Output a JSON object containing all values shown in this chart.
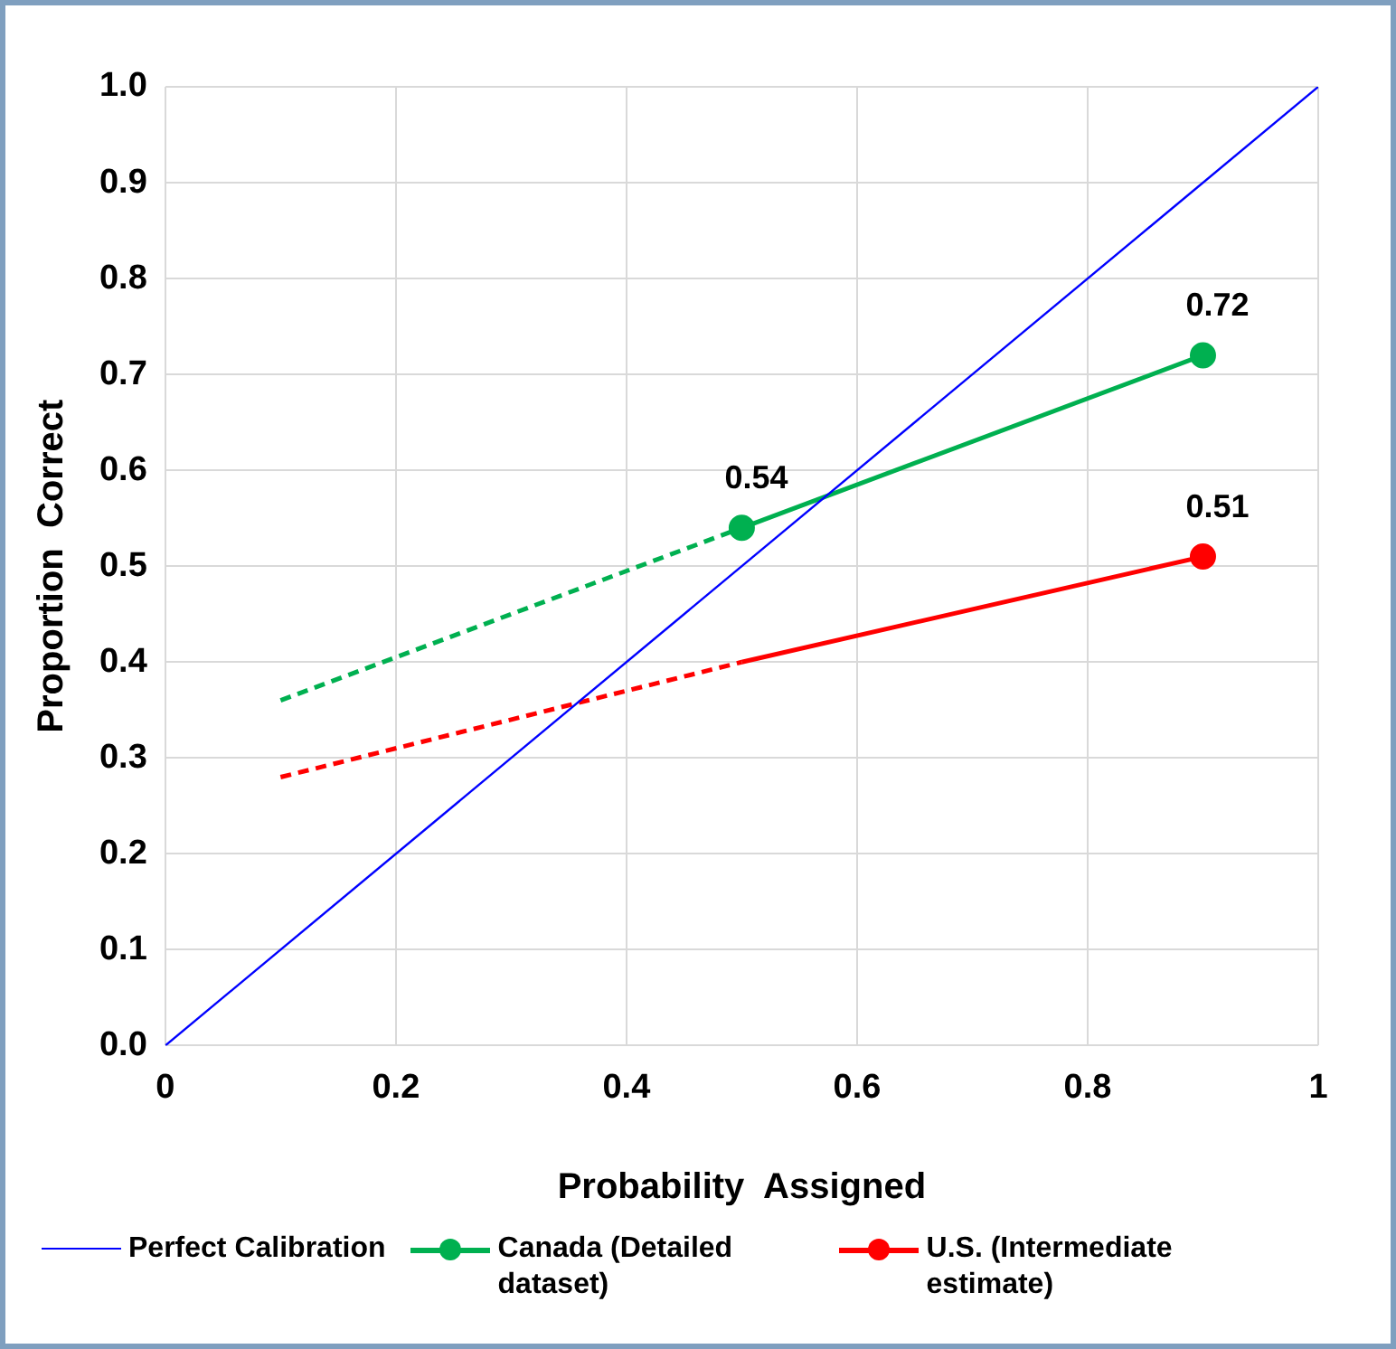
{
  "chart_data": {
    "type": "line",
    "xlabel": "Probability  Assigned",
    "ylabel": "Proportion  Correct",
    "xlim": [
      0,
      1
    ],
    "xticks": [
      0,
      0.2,
      0.4,
      0.6,
      0.8,
      1
    ],
    "ylim": [
      0,
      1
    ],
    "yticks": [
      {
        "value": 0,
        "label": "0.0"
      },
      {
        "value": 0.1,
        "label": "0.1"
      },
      {
        "value": 0.2,
        "label": "0.2"
      },
      {
        "value": 0.3,
        "label": "0.3"
      },
      {
        "value": 0.4,
        "label": "0.4"
      },
      {
        "value": 0.5,
        "label": "0.5"
      },
      {
        "value": 0.6,
        "label": "0.6"
      },
      {
        "value": 0.7,
        "label": "0.7"
      },
      {
        "value": 0.8,
        "label": "0.8"
      },
      {
        "value": 0.9,
        "label": "0.9"
      },
      {
        "value": 1,
        "label": "1.0"
      }
    ],
    "grid": true,
    "legend": "bottom",
    "series": [
      {
        "name": "Perfect Calibration",
        "color": "#0000ff",
        "x": [
          0,
          1
        ],
        "values": [
          0,
          1
        ],
        "marker": "none",
        "line_style": "solid"
      },
      {
        "name": "Canada (Detailed dataset)",
        "color": "#00b050",
        "x": [
          0.5,
          0.9
        ],
        "values": [
          0.54,
          0.72
        ],
        "value_labels": [
          "0.54",
          "0.72"
        ],
        "marker": "circle",
        "line_style": "solid"
      },
      {
        "color": "#00b050",
        "x": [
          0.1,
          0.5
        ],
        "values": [
          0.36,
          0.54
        ],
        "marker": "none",
        "line_style": "dashed"
      },
      {
        "name": "U.S. (Intermediate estimate)",
        "color": "#ff0000",
        "x": [
          0.5,
          0.9
        ],
        "values": [
          0.4,
          0.51
        ],
        "value_labels": [
          null,
          "0.51"
        ],
        "marker": "circle",
        "line_style": "solid"
      },
      {
        "color": "#ff0000",
        "x": [
          0.1,
          0.5
        ],
        "values": [
          0.28,
          0.4
        ],
        "marker": "none",
        "line_style": "dashed"
      }
    ]
  }
}
